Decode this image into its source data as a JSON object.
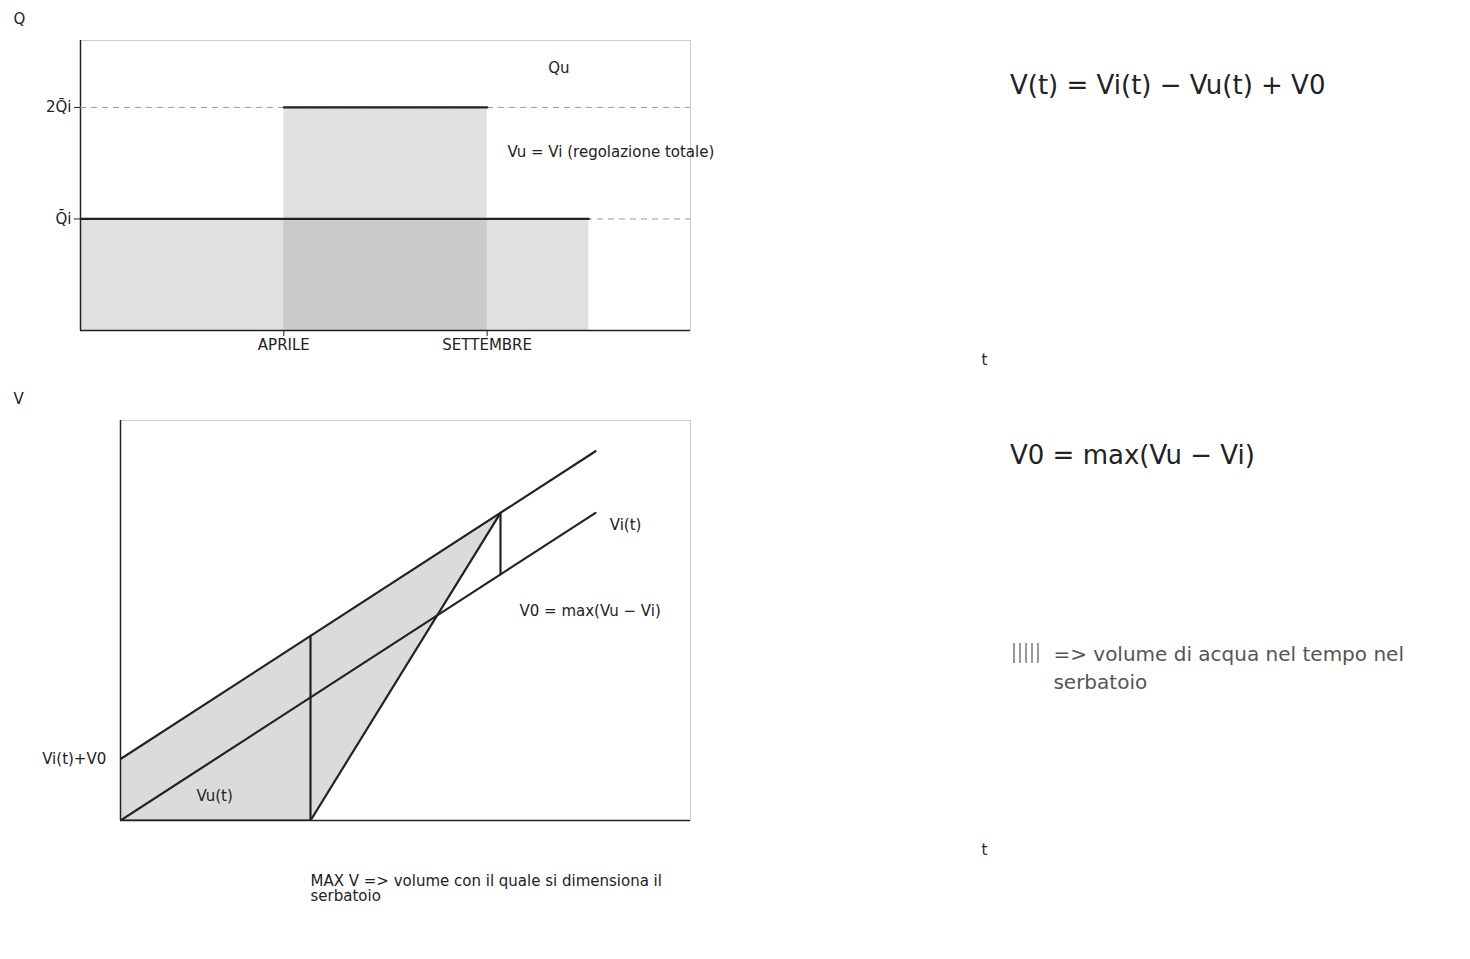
{
  "chart_data": [
    {
      "type": "area",
      "x_label": "t",
      "y_label": "Q",
      "xlim": [
        0,
        12
      ],
      "ylim": [
        0,
        2.6
      ],
      "xticks": [
        {
          "value": 4,
          "label": "APRILE"
        },
        {
          "value": 8,
          "label": "SETTEMBRE"
        }
      ],
      "yticks": [
        {
          "value": 1,
          "label": "Q̄i"
        },
        {
          "value": 2,
          "label": "2Q̄i"
        }
      ],
      "color": "#999999",
      "series": [
        {
          "x": [
            0,
            10
          ],
          "values": [
            1,
            1
          ],
          "color": "#222222"
        },
        {
          "x": [
            4,
            8
          ],
          "values": [
            2,
            2
          ],
          "color": "#222222"
        }
      ],
      "annotations": [
        {
          "text": "Qu",
          "x": 9.2,
          "y": 2.35
        },
        {
          "text": "Vu = Vi (regolazione totale)",
          "x": 8.4,
          "y": 1.6
        }
      ]
    },
    {
      "type": "line",
      "x_label": "t",
      "y_label": "V",
      "xlim": [
        0,
        12
      ],
      "ylim": [
        0,
        13
      ],
      "tick_labels": false,
      "color": "#999999",
      "series": [
        {
          "x": [
            0,
            10
          ],
          "values": [
            0,
            10
          ],
          "color": "#222222"
        },
        {
          "x": [
            0,
            10
          ],
          "values": [
            2,
            12
          ],
          "color": "#222222"
        },
        {
          "x": [
            0,
            4,
            8
          ],
          "values": [
            0,
            0,
            10
          ],
          "color": "#222222"
        },
        {
          "x": [
            8,
            8
          ],
          "values": [
            8,
            10
          ],
          "color": "#222222"
        },
        {
          "x": [
            4,
            4
          ],
          "values": [
            0,
            6
          ],
          "color": "#222222"
        }
      ],
      "area": {
        "x": [
          0,
          4,
          8
        ],
        "upper": [
          2,
          6,
          10
        ],
        "lower": [
          0,
          0,
          10
        ]
      },
      "annotations": [
        {
          "text": "Vi(t)",
          "x": 10.3,
          "y": 9.6
        },
        {
          "text": "Vi(t)+V0",
          "x": -0.3,
          "y": 2
        },
        {
          "text": "Vu(t)",
          "x": 1.6,
          "y": 0.8
        },
        {
          "text": "V0 = max(Vu − Vi)",
          "x": 8.4,
          "y": 6.8
        },
        {
          "text": "MAX V => volume con il quale si dimensiona il serbatoio",
          "x": 4,
          "y": -2.2
        }
      ]
    }
  ],
  "notes": {
    "equation": "V(t) = Vi(t) − Vu(t) + V0",
    "v0": "V0 = max(Vu − Vi)",
    "legend_text": "=> volume di acqua nel tempo nel serbatoio"
  }
}
